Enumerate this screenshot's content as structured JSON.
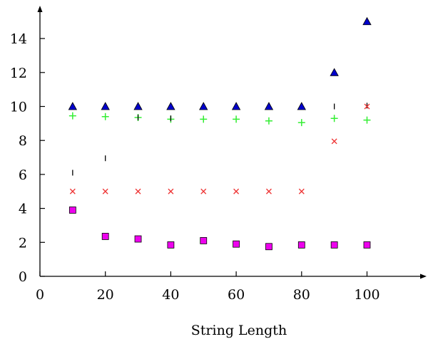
{
  "chart_data": {
    "type": "scatter",
    "title": "",
    "xlabel": "String Length",
    "ylabel": "",
    "xlim": [
      0,
      118
    ],
    "ylim": [
      0,
      15.5
    ],
    "x_ticks": [
      0,
      20,
      40,
      60,
      80,
      100
    ],
    "y_ticks": [
      0,
      2,
      4,
      6,
      8,
      10,
      12,
      14
    ],
    "grid": false,
    "legend": "none",
    "series": [
      {
        "marker": "triangle",
        "color": "#0000cc",
        "x": [
          10,
          20,
          30,
          40,
          50,
          60,
          70,
          80,
          90,
          100
        ],
        "y": [
          10,
          10,
          10,
          10,
          10,
          10,
          10,
          10,
          12,
          15
        ]
      },
      {
        "marker": "plus",
        "color": "#33ee33",
        "x": [
          10,
          20,
          30,
          40,
          50,
          60,
          70,
          80,
          90,
          100
        ],
        "y": [
          9.45,
          9.4,
          9.35,
          9.25,
          9.25,
          9.25,
          9.15,
          9.05,
          9.3,
          9.2
        ]
      },
      {
        "marker": "vline",
        "color": "#000000",
        "x": [
          10,
          20,
          30,
          40,
          90,
          100
        ],
        "y": [
          6.1,
          6.95,
          9.35,
          9.3,
          10.0,
          10.05
        ]
      },
      {
        "marker": "cross",
        "color": "#ee3333",
        "x": [
          10,
          20,
          30,
          40,
          50,
          60,
          70,
          80,
          90,
          100
        ],
        "y": [
          5,
          5,
          5,
          5,
          5,
          5,
          5,
          5,
          7.95,
          10.0
        ]
      },
      {
        "marker": "square",
        "color": "#ee00ee",
        "x": [
          10,
          20,
          30,
          40,
          50,
          60,
          70,
          80,
          90,
          100
        ],
        "y": [
          3.9,
          2.35,
          2.2,
          1.85,
          2.1,
          1.9,
          1.75,
          1.85,
          1.85,
          1.85
        ]
      }
    ]
  }
}
